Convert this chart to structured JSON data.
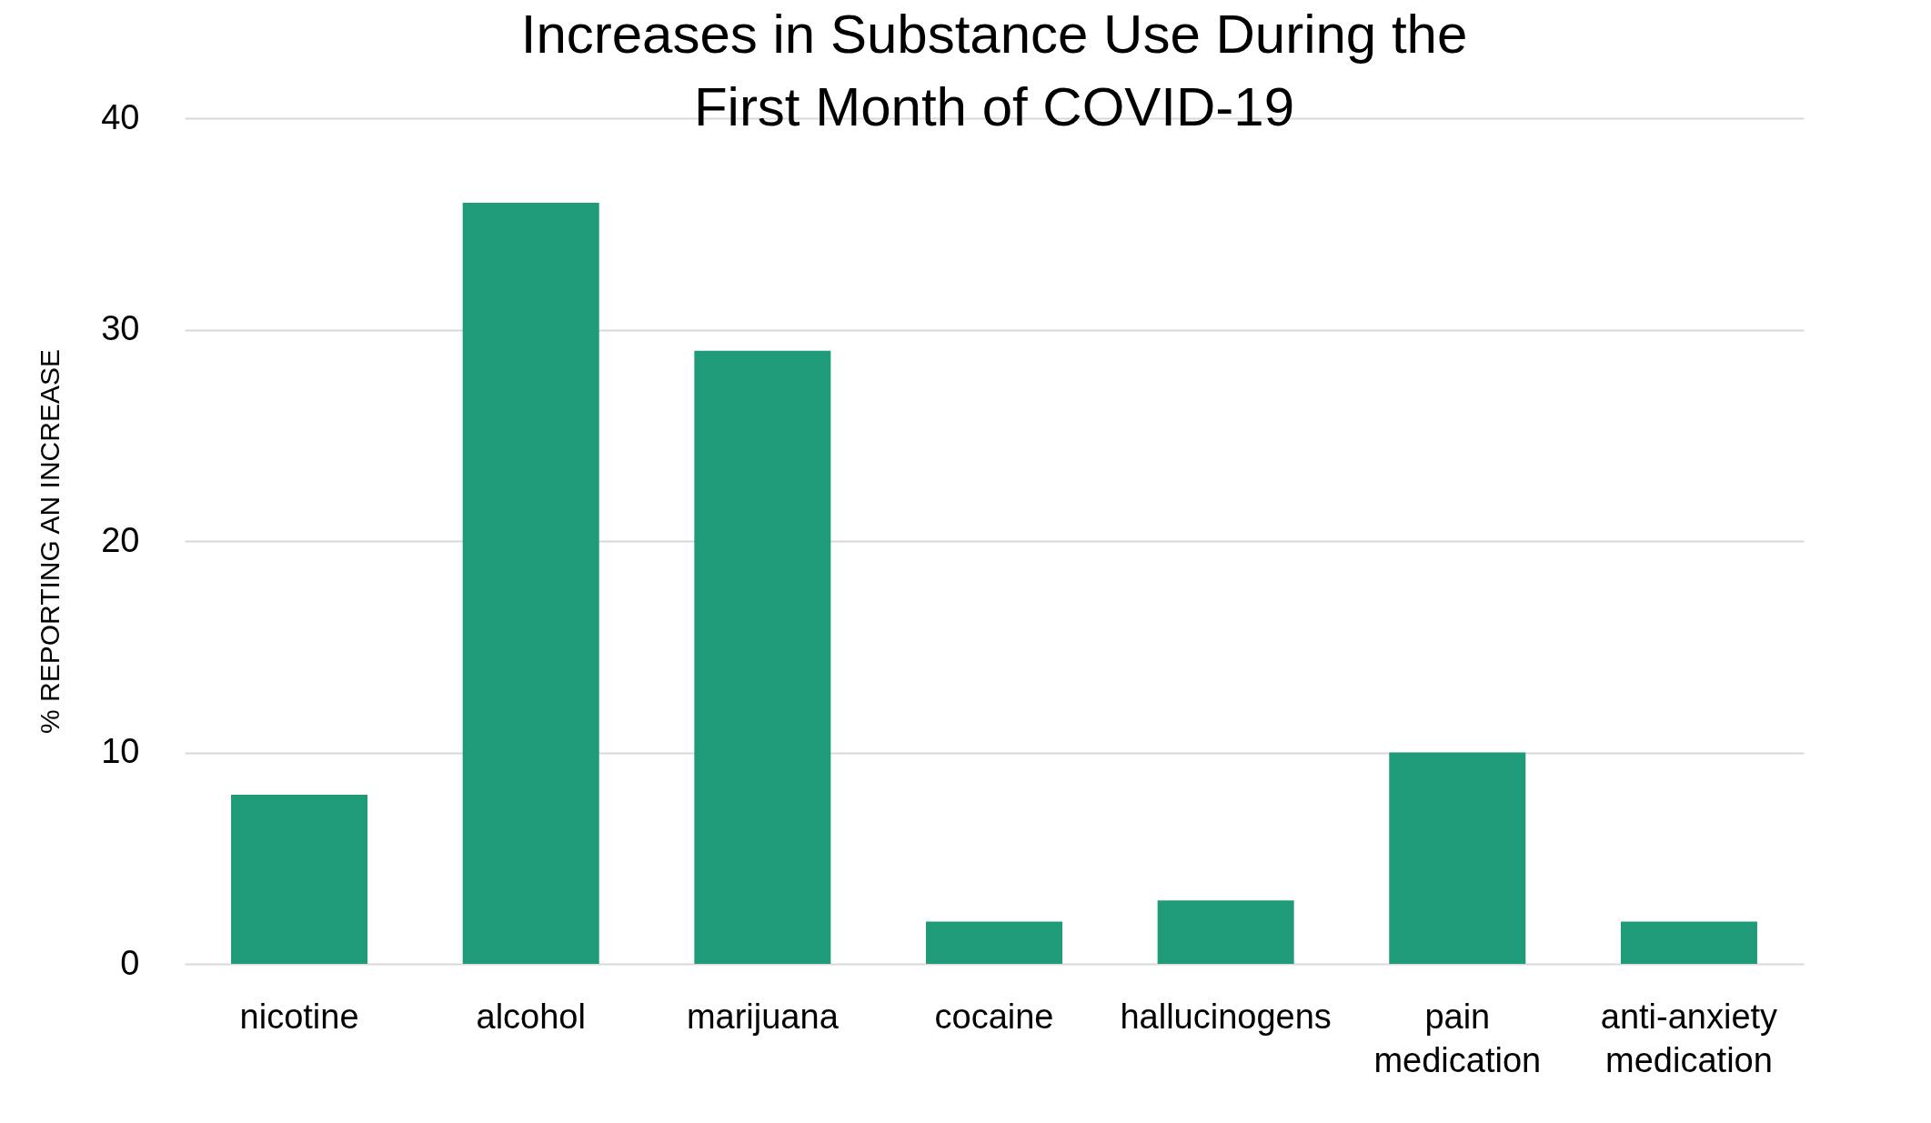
{
  "chart_data": {
    "type": "bar",
    "title": "Increases in Substance Use During the First Month of COVID-19",
    "ylabel": "% REPORTING AN INCREASE",
    "categories": [
      "nicotine",
      "alcohol",
      "marijuana",
      "cocaine",
      "hallucinogens",
      "pain medication",
      "anti-anxiety medication"
    ],
    "values": [
      8,
      36,
      29,
      2,
      3,
      10,
      2
    ],
    "color": "#1f9b7a",
    "ylim": [
      0,
      40
    ],
    "yticks": [
      0,
      10,
      20,
      30,
      40
    ],
    "grid": "y"
  }
}
